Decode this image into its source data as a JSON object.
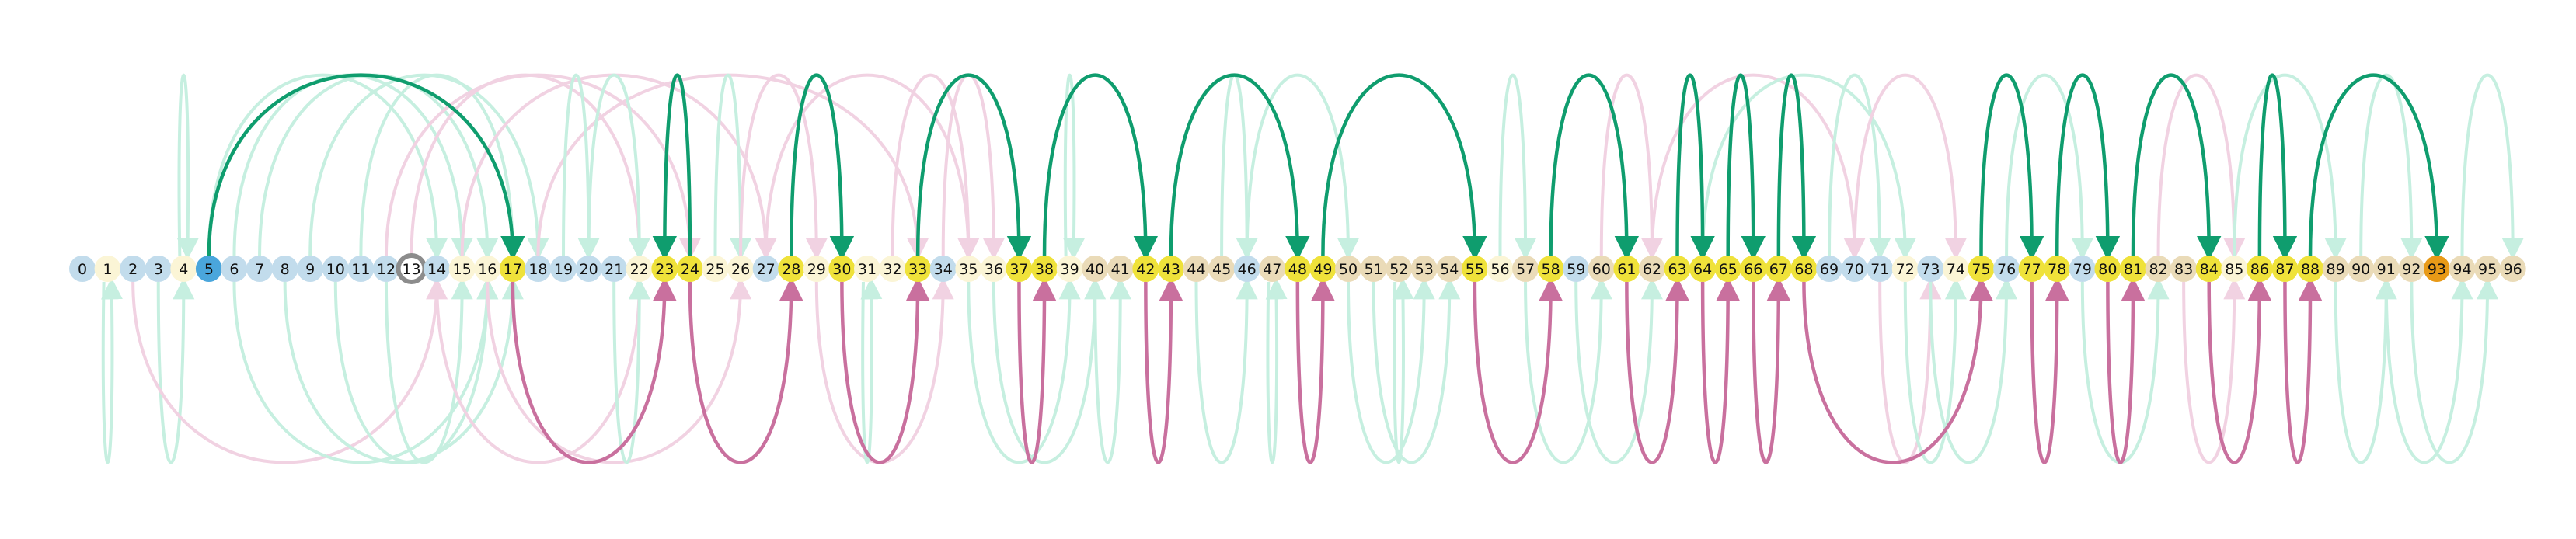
{
  "colors": {
    "node_light_blue": "#c2dcec",
    "node_cream": "#fbf5d6",
    "node_tan": "#eadbb8",
    "node_yellow": "#efe23a",
    "node_blue": "#4aa6dc",
    "node_orange": "#e89a17",
    "node_ring": "#8c8c8c",
    "arc_green": "#0f9d6e",
    "arc_pink": "#c9709e",
    "arc_faint_green": "#c6efe0",
    "arc_faint_pink": "#f1d2e2"
  },
  "nodes": [
    {
      "label": "0",
      "kind": "light_blue"
    },
    {
      "label": "1",
      "kind": "cream"
    },
    {
      "label": "2",
      "kind": "light_blue"
    },
    {
      "label": "3",
      "kind": "light_blue"
    },
    {
      "label": "4",
      "kind": "cream"
    },
    {
      "label": "5",
      "kind": "blue"
    },
    {
      "label": "6",
      "kind": "light_blue"
    },
    {
      "label": "7",
      "kind": "light_blue"
    },
    {
      "label": "8",
      "kind": "light_blue"
    },
    {
      "label": "9",
      "kind": "light_blue"
    },
    {
      "label": "10",
      "kind": "light_blue"
    },
    {
      "label": "11",
      "kind": "light_blue"
    },
    {
      "label": "12",
      "kind": "light_blue"
    },
    {
      "label": "13",
      "kind": "ring"
    },
    {
      "label": "14",
      "kind": "light_blue"
    },
    {
      "label": "15",
      "kind": "cream"
    },
    {
      "label": "16",
      "kind": "cream"
    },
    {
      "label": "17",
      "kind": "yellow"
    },
    {
      "label": "18",
      "kind": "light_blue"
    },
    {
      "label": "19",
      "kind": "light_blue"
    },
    {
      "label": "20",
      "kind": "light_blue"
    },
    {
      "label": "21",
      "kind": "light_blue"
    },
    {
      "label": "22",
      "kind": "cream"
    },
    {
      "label": "23",
      "kind": "yellow"
    },
    {
      "label": "24",
      "kind": "yellow"
    },
    {
      "label": "25",
      "kind": "cream"
    },
    {
      "label": "26",
      "kind": "cream"
    },
    {
      "label": "27",
      "kind": "light_blue"
    },
    {
      "label": "28",
      "kind": "yellow"
    },
    {
      "label": "29",
      "kind": "cream"
    },
    {
      "label": "30",
      "kind": "yellow"
    },
    {
      "label": "31",
      "kind": "cream"
    },
    {
      "label": "32",
      "kind": "cream"
    },
    {
      "label": "33",
      "kind": "yellow"
    },
    {
      "label": "34",
      "kind": "light_blue"
    },
    {
      "label": "35",
      "kind": "cream"
    },
    {
      "label": "36",
      "kind": "cream"
    },
    {
      "label": "37",
      "kind": "yellow"
    },
    {
      "label": "38",
      "kind": "yellow"
    },
    {
      "label": "39",
      "kind": "cream"
    },
    {
      "label": "40",
      "kind": "tan"
    },
    {
      "label": "41",
      "kind": "tan"
    },
    {
      "label": "42",
      "kind": "yellow"
    },
    {
      "label": "43",
      "kind": "yellow"
    },
    {
      "label": "44",
      "kind": "tan"
    },
    {
      "label": "45",
      "kind": "tan"
    },
    {
      "label": "46",
      "kind": "light_blue"
    },
    {
      "label": "47",
      "kind": "tan"
    },
    {
      "label": "48",
      "kind": "yellow"
    },
    {
      "label": "49",
      "kind": "yellow"
    },
    {
      "label": "50",
      "kind": "tan"
    },
    {
      "label": "51",
      "kind": "tan"
    },
    {
      "label": "52",
      "kind": "tan"
    },
    {
      "label": "53",
      "kind": "tan"
    },
    {
      "label": "54",
      "kind": "tan"
    },
    {
      "label": "55",
      "kind": "yellow"
    },
    {
      "label": "56",
      "kind": "cream"
    },
    {
      "label": "57",
      "kind": "tan"
    },
    {
      "label": "58",
      "kind": "yellow"
    },
    {
      "label": "59",
      "kind": "light_blue"
    },
    {
      "label": "60",
      "kind": "tan"
    },
    {
      "label": "61",
      "kind": "yellow"
    },
    {
      "label": "62",
      "kind": "tan"
    },
    {
      "label": "63",
      "kind": "yellow"
    },
    {
      "label": "64",
      "kind": "yellow"
    },
    {
      "label": "65",
      "kind": "yellow"
    },
    {
      "label": "66",
      "kind": "yellow"
    },
    {
      "label": "67",
      "kind": "yellow"
    },
    {
      "label": "68",
      "kind": "yellow"
    },
    {
      "label": "69",
      "kind": "light_blue"
    },
    {
      "label": "70",
      "kind": "light_blue"
    },
    {
      "label": "71",
      "kind": "light_blue"
    },
    {
      "label": "72",
      "kind": "cream"
    },
    {
      "label": "73",
      "kind": "light_blue"
    },
    {
      "label": "74",
      "kind": "cream"
    },
    {
      "label": "75",
      "kind": "yellow"
    },
    {
      "label": "76",
      "kind": "light_blue"
    },
    {
      "label": "77",
      "kind": "yellow"
    },
    {
      "label": "78",
      "kind": "yellow"
    },
    {
      "label": "79",
      "kind": "light_blue"
    },
    {
      "label": "80",
      "kind": "yellow"
    },
    {
      "label": "81",
      "kind": "yellow"
    },
    {
      "label": "82",
      "kind": "tan"
    },
    {
      "label": "83",
      "kind": "tan"
    },
    {
      "label": "84",
      "kind": "yellow"
    },
    {
      "label": "85",
      "kind": "cream"
    },
    {
      "label": "86",
      "kind": "yellow"
    },
    {
      "label": "87",
      "kind": "yellow"
    },
    {
      "label": "88",
      "kind": "yellow"
    },
    {
      "label": "89",
      "kind": "tan"
    },
    {
      "label": "90",
      "kind": "tan"
    },
    {
      "label": "91",
      "kind": "tan"
    },
    {
      "label": "92",
      "kind": "tan"
    },
    {
      "label": "93",
      "kind": "orange"
    },
    {
      "label": "94",
      "kind": "tan"
    },
    {
      "label": "95",
      "kind": "tan"
    },
    {
      "label": "96",
      "kind": "tan"
    }
  ],
  "arcs_strong": [
    {
      "from": 5,
      "to": 17,
      "side": "top",
      "color": "green"
    },
    {
      "from": 24,
      "to": 23,
      "side": "top",
      "color": "green"
    },
    {
      "from": 28,
      "to": 30,
      "side": "top",
      "color": "green"
    },
    {
      "from": 33,
      "to": 37,
      "side": "top",
      "color": "green"
    },
    {
      "from": 38,
      "to": 42,
      "side": "top",
      "color": "green"
    },
    {
      "from": 43,
      "to": 48,
      "side": "top",
      "color": "green"
    },
    {
      "from": 49,
      "to": 55,
      "side": "top",
      "color": "green"
    },
    {
      "from": 58,
      "to": 61,
      "side": "top",
      "color": "green"
    },
    {
      "from": 63,
      "to": 64,
      "side": "top",
      "color": "green"
    },
    {
      "from": 65,
      "to": 66,
      "side": "top",
      "color": "green"
    },
    {
      "from": 67,
      "to": 68,
      "side": "top",
      "color": "green"
    },
    {
      "from": 75,
      "to": 77,
      "side": "top",
      "color": "green"
    },
    {
      "from": 78,
      "to": 80,
      "side": "top",
      "color": "green"
    },
    {
      "from": 81,
      "to": 84,
      "side": "top",
      "color": "green"
    },
    {
      "from": 86,
      "to": 87,
      "side": "top",
      "color": "green"
    },
    {
      "from": 88,
      "to": 93,
      "side": "top",
      "color": "green"
    },
    {
      "from": 17,
      "to": 23,
      "side": "bottom",
      "color": "pink"
    },
    {
      "from": 24,
      "to": 28,
      "side": "bottom",
      "color": "pink"
    },
    {
      "from": 30,
      "to": 33,
      "side": "bottom",
      "color": "pink"
    },
    {
      "from": 37,
      "to": 38,
      "side": "bottom",
      "color": "pink"
    },
    {
      "from": 42,
      "to": 43,
      "side": "bottom",
      "color": "pink"
    },
    {
      "from": 48,
      "to": 49,
      "side": "bottom",
      "color": "pink"
    },
    {
      "from": 55,
      "to": 58,
      "side": "bottom",
      "color": "pink"
    },
    {
      "from": 61,
      "to": 63,
      "side": "bottom",
      "color": "pink"
    },
    {
      "from": 64,
      "to": 65,
      "side": "bottom",
      "color": "pink"
    },
    {
      "from": 66,
      "to": 67,
      "side": "bottom",
      "color": "pink"
    },
    {
      "from": 68,
      "to": 75,
      "side": "bottom",
      "color": "pink"
    },
    {
      "from": 77,
      "to": 78,
      "side": "bottom",
      "color": "pink"
    },
    {
      "from": 80,
      "to": 81,
      "side": "bottom",
      "color": "pink"
    },
    {
      "from": 84,
      "to": 86,
      "side": "bottom",
      "color": "pink"
    },
    {
      "from": 87,
      "to": 88,
      "side": "bottom",
      "color": "pink"
    }
  ],
  "arcs_faint": [
    {
      "from": 4,
      "to": 4,
      "side": "top",
      "color": "green"
    },
    {
      "from": 1,
      "to": 1,
      "side": "bottom",
      "color": "green"
    },
    {
      "from": 3,
      "to": 4,
      "side": "bottom",
      "color": "green"
    },
    {
      "from": 5,
      "to": 14,
      "side": "top",
      "color": "green"
    },
    {
      "from": 6,
      "to": 15,
      "side": "top",
      "color": "green"
    },
    {
      "from": 7,
      "to": 16,
      "side": "top",
      "color": "green"
    },
    {
      "from": 9,
      "to": 18,
      "side": "top",
      "color": "green"
    },
    {
      "from": 11,
      "to": 17,
      "side": "top",
      "color": "green"
    },
    {
      "from": 12,
      "to": 24,
      "side": "top",
      "color": "pink"
    },
    {
      "from": 13,
      "to": 22,
      "side": "top",
      "color": "pink"
    },
    {
      "from": 15,
      "to": 27,
      "side": "top",
      "color": "pink"
    },
    {
      "from": 18,
      "to": 33,
      "side": "top",
      "color": "pink"
    },
    {
      "from": 2,
      "to": 14,
      "side": "bottom",
      "color": "pink"
    },
    {
      "from": 6,
      "to": 16,
      "side": "bottom",
      "color": "green"
    },
    {
      "from": 8,
      "to": 17,
      "side": "bottom",
      "color": "green"
    },
    {
      "from": 10,
      "to": 16,
      "side": "bottom",
      "color": "green"
    },
    {
      "from": 12,
      "to": 15,
      "side": "bottom",
      "color": "green"
    },
    {
      "from": 14,
      "to": 22,
      "side": "bottom",
      "color": "pink"
    },
    {
      "from": 16,
      "to": 26,
      "side": "bottom",
      "color": "pink"
    },
    {
      "from": 19,
      "to": 20,
      "side": "top",
      "color": "green"
    },
    {
      "from": 20,
      "to": 22,
      "side": "top",
      "color": "green"
    },
    {
      "from": 21,
      "to": 22,
      "side": "bottom",
      "color": "green"
    },
    {
      "from": 25,
      "to": 26,
      "side": "top",
      "color": "green"
    },
    {
      "from": 26,
      "to": 29,
      "side": "top",
      "color": "pink"
    },
    {
      "from": 27,
      "to": 35,
      "side": "top",
      "color": "pink"
    },
    {
      "from": 29,
      "to": 34,
      "side": "bottom",
      "color": "pink"
    },
    {
      "from": 31,
      "to": 31,
      "side": "bottom",
      "color": "green"
    },
    {
      "from": 32,
      "to": 35,
      "side": "top",
      "color": "pink"
    },
    {
      "from": 34,
      "to": 36,
      "side": "top",
      "color": "pink"
    },
    {
      "from": 35,
      "to": 39,
      "side": "bottom",
      "color": "green"
    },
    {
      "from": 36,
      "to": 40,
      "side": "bottom",
      "color": "green"
    },
    {
      "from": 39,
      "to": 39,
      "side": "top",
      "color": "green"
    },
    {
      "from": 40,
      "to": 41,
      "side": "bottom",
      "color": "green"
    },
    {
      "from": 44,
      "to": 46,
      "side": "bottom",
      "color": "green"
    },
    {
      "from": 45,
      "to": 46,
      "side": "top",
      "color": "green"
    },
    {
      "from": 46,
      "to": 50,
      "side": "top",
      "color": "green"
    },
    {
      "from": 47,
      "to": 47,
      "side": "bottom",
      "color": "green"
    },
    {
      "from": 50,
      "to": 53,
      "side": "bottom",
      "color": "green"
    },
    {
      "from": 51,
      "to": 54,
      "side": "bottom",
      "color": "green"
    },
    {
      "from": 52,
      "to": 52,
      "side": "bottom",
      "color": "green"
    },
    {
      "from": 56,
      "to": 57,
      "side": "top",
      "color": "green"
    },
    {
      "from": 57,
      "to": 60,
      "side": "bottom",
      "color": "green"
    },
    {
      "from": 59,
      "to": 62,
      "side": "bottom",
      "color": "green"
    },
    {
      "from": 60,
      "to": 62,
      "side": "top",
      "color": "pink"
    },
    {
      "from": 62,
      "to": 70,
      "side": "top",
      "color": "pink"
    },
    {
      "from": 64,
      "to": 72,
      "side": "top",
      "color": "green"
    },
    {
      "from": 69,
      "to": 71,
      "side": "top",
      "color": "green"
    },
    {
      "from": 70,
      "to": 74,
      "side": "top",
      "color": "pink"
    },
    {
      "from": 71,
      "to": 73,
      "side": "bottom",
      "color": "pink"
    },
    {
      "from": 72,
      "to": 74,
      "side": "bottom",
      "color": "green"
    },
    {
      "from": 73,
      "to": 76,
      "side": "bottom",
      "color": "green"
    },
    {
      "from": 76,
      "to": 79,
      "side": "top",
      "color": "green"
    },
    {
      "from": 79,
      "to": 82,
      "side": "bottom",
      "color": "green"
    },
    {
      "from": 82,
      "to": 85,
      "side": "top",
      "color": "pink"
    },
    {
      "from": 83,
      "to": 85,
      "side": "bottom",
      "color": "pink"
    },
    {
      "from": 85,
      "to": 89,
      "side": "top",
      "color": "green"
    },
    {
      "from": 89,
      "to": 91,
      "side": "bottom",
      "color": "green"
    },
    {
      "from": 90,
      "to": 92,
      "side": "top",
      "color": "green"
    },
    {
      "from": 91,
      "to": 94,
      "side": "bottom",
      "color": "green"
    },
    {
      "from": 92,
      "to": 95,
      "side": "bottom",
      "color": "green"
    },
    {
      "from": 94,
      "to": 96,
      "side": "top",
      "color": "green"
    }
  ]
}
